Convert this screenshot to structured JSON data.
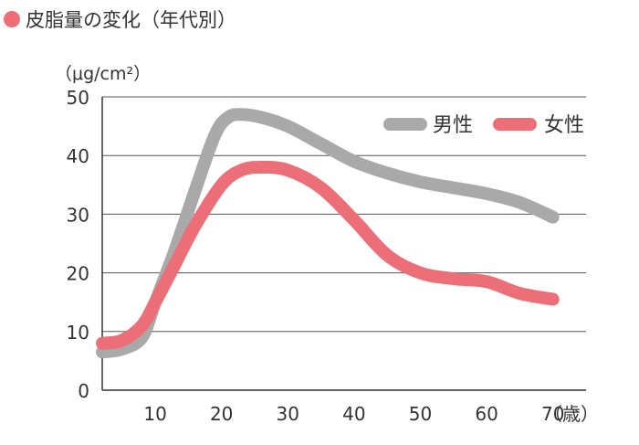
{
  "title": "皮脂量の変化（年代別）",
  "colors": {
    "title_dot": "#ee6e78",
    "male": "#a9a9a9",
    "female": "#ec6f78",
    "grid": "#555555"
  },
  "chart_data": {
    "type": "line",
    "ylabel": "（μg/cm²）",
    "xlabel": "（歳）",
    "ylim": [
      0,
      50
    ],
    "xlim": [
      2,
      75
    ],
    "yticks": [
      "0",
      "10",
      "20",
      "30",
      "40",
      "50"
    ],
    "xticks": [
      "10",
      "20",
      "30",
      "40",
      "50",
      "60",
      "70"
    ],
    "grid": true,
    "legend_position": "top-right",
    "series": [
      {
        "name": "男性",
        "color": "#a9a9a9",
        "x": [
          2,
          5,
          8,
          10,
          13,
          16,
          19,
          21,
          23,
          26,
          30,
          35,
          40,
          45,
          50,
          55,
          60,
          65,
          70
        ],
        "y": [
          6.5,
          7,
          9,
          15,
          24,
          34,
          43.5,
          46.5,
          47,
          46.5,
          45,
          42,
          39,
          37,
          35.5,
          34.5,
          33.5,
          32,
          29.5
        ]
      },
      {
        "name": "女性",
        "color": "#ec6f78",
        "x": [
          2,
          5,
          8,
          10,
          13,
          16,
          20,
          23,
          26,
          30,
          35,
          40,
          45,
          50,
          55,
          60,
          65,
          70
        ],
        "y": [
          8,
          8.5,
          11,
          15,
          21.5,
          28,
          35,
          37.5,
          38,
          37.5,
          34.5,
          29,
          23,
          20,
          19,
          18.5,
          16.5,
          15.5
        ]
      }
    ]
  }
}
